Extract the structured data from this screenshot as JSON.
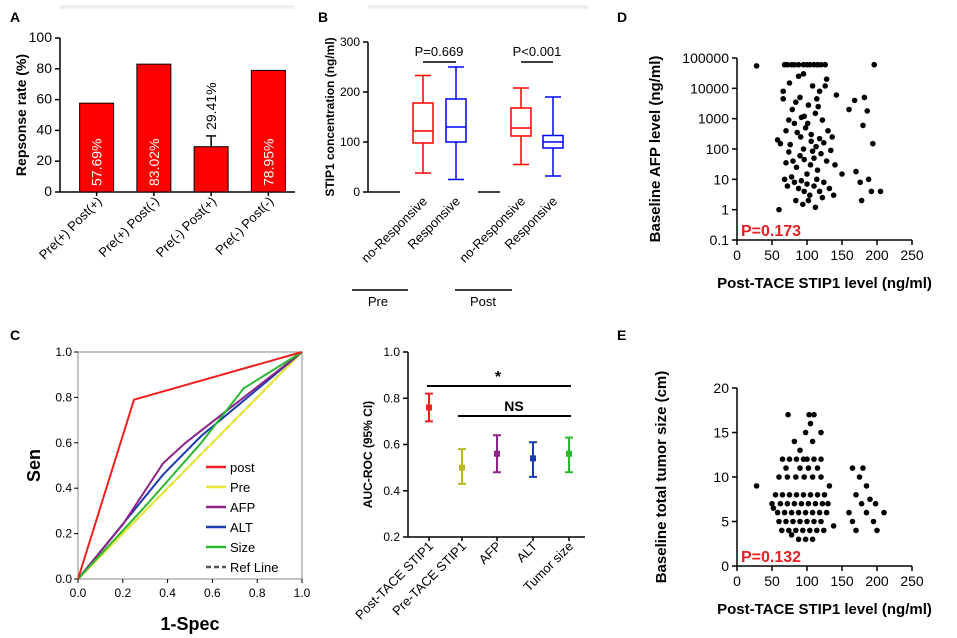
{
  "panels": {
    "A": "A",
    "B": "B",
    "C": "C",
    "D": "D",
    "E": "E"
  },
  "chart_data": [
    {
      "id": "A",
      "type": "bar",
      "ylabel": "Repsonse rate (%)",
      "ylim": [
        0,
        100
      ],
      "yticks": [
        0,
        20,
        40,
        60,
        80,
        100
      ],
      "categories": [
        "Pre(+) Post(+)",
        "Pre(+) Post(-)",
        "Pre(-) Post(+)",
        "Pre(-) Post(-)"
      ],
      "values": [
        57.69,
        83.02,
        29.41,
        78.95
      ],
      "errors": [
        0,
        0,
        7,
        0
      ],
      "labels": [
        "57.69%",
        "83.02%",
        "29.41%",
        "78.95%"
      ],
      "bar_color": "#ff0000"
    },
    {
      "id": "B",
      "type": "box",
      "ylabel": "STIP1 concentration (ng/ml)",
      "ylim": [
        0,
        300
      ],
      "yticks": [
        0,
        100,
        200,
        300
      ],
      "groups": [
        {
          "name": "no-Responsive",
          "set": "Pre",
          "color": "#ff0000",
          "min": 38,
          "q1": 98,
          "median": 122,
          "q3": 178,
          "max": 233
        },
        {
          "name": "Responsive",
          "set": "Pre",
          "color": "#0000ff",
          "min": 25,
          "q1": 100,
          "median": 130,
          "q3": 186,
          "max": 250
        },
        {
          "name": "no-Responsive",
          "set": "Post",
          "color": "#ff0000",
          "min": 55,
          "q1": 112,
          "median": 128,
          "q3": 168,
          "max": 208
        },
        {
          "name": "Responsive",
          "set": "Post",
          "color": "#0000ff",
          "min": 32,
          "q1": 88,
          "median": 100,
          "q3": 113,
          "max": 190
        }
      ],
      "set_labels": [
        "Pre",
        "Post"
      ],
      "annotations": [
        "P=0.669",
        "P<0.001"
      ]
    },
    {
      "id": "C1",
      "type": "line",
      "xlabel": "1-Spec",
      "ylabel": "Sen",
      "xlim": [
        0,
        1
      ],
      "ylim": [
        0,
        1
      ],
      "ticks": [
        "0.0",
        "0.2",
        "0.4",
        "0.6",
        "0.8",
        "1.0"
      ],
      "series": [
        {
          "name": "post",
          "color": "#ee2020",
          "points": [
            [
              0,
              0
            ],
            [
              0.25,
              0.79
            ],
            [
              1,
              1
            ]
          ]
        },
        {
          "name": "Pre",
          "color": "#e8e830",
          "points": [
            [
              0,
              0
            ],
            [
              1,
              1
            ]
          ]
        },
        {
          "name": "AFP",
          "color": "#8e2488",
          "points": [
            [
              0,
              0
            ],
            [
              0.2,
              0.24
            ],
            [
              0.38,
              0.51
            ],
            [
              0.48,
              0.6
            ],
            [
              1,
              1
            ]
          ]
        },
        {
          "name": "ALT",
          "color": "#1a3cb0",
          "points": [
            [
              0,
              0
            ],
            [
              0.38,
              0.46
            ],
            [
              0.55,
              0.63
            ],
            [
              1,
              1
            ]
          ]
        },
        {
          "name": "Size",
          "color": "#2ab830",
          "points": [
            [
              0,
              0
            ],
            [
              0.3,
              0.32
            ],
            [
              0.55,
              0.6
            ],
            [
              0.74,
              0.84
            ],
            [
              1,
              1
            ]
          ]
        },
        {
          "name": "Ref Line",
          "color": "#555555",
          "points": [
            [
              0,
              0
            ],
            [
              1,
              1
            ]
          ]
        }
      ]
    },
    {
      "id": "C2",
      "type": "errorbar",
      "ylabel": "AUC-ROC (95% CI)",
      "ylim": [
        0.2,
        1.0
      ],
      "yticks": [
        "0.2",
        "0.4",
        "0.6",
        "0.8",
        "1.0"
      ],
      "categories": [
        "Post-TACE STIP1",
        "Pre-TACE STIP1",
        "AFP",
        "ALT",
        "Tumor size"
      ],
      "values": [
        0.76,
        0.5,
        0.56,
        0.54,
        0.56
      ],
      "lower": [
        0.7,
        0.43,
        0.48,
        0.46,
        0.48
      ],
      "upper": [
        0.82,
        0.58,
        0.64,
        0.61,
        0.63
      ],
      "colors": [
        "#ee2020",
        "#b8b820",
        "#8e2488",
        "#1a3cb0",
        "#2ab830"
      ],
      "annotations": [
        "*",
        "NS"
      ]
    },
    {
      "id": "D",
      "type": "scatter",
      "xlabel": "Post-TACE STIP1 level (ng/ml)",
      "ylabel": "Baseline AFP level (ng/ml)",
      "xlim": [
        0,
        250
      ],
      "ylim": [
        0.1,
        100000
      ],
      "yscale": "log",
      "xticks": [
        "0",
        "50",
        "100",
        "150",
        "200",
        "250"
      ],
      "yticks": [
        "0.1",
        "1",
        "10",
        "100",
        "1000",
        "10000",
        "100000"
      ],
      "annotation": "P=0.173",
      "points": [
        [
          28,
          55000
        ],
        [
          68,
          60000
        ],
        [
          72,
          60000
        ],
        [
          78,
          60000
        ],
        [
          82,
          60000
        ],
        [
          88,
          60000
        ],
        [
          95,
          60000
        ],
        [
          100,
          60000
        ],
        [
          104,
          60000
        ],
        [
          110,
          60000
        ],
        [
          115,
          60000
        ],
        [
          120,
          60000
        ],
        [
          126,
          60000
        ],
        [
          196,
          60000
        ],
        [
          66,
          8000
        ],
        [
          75,
          15000
        ],
        [
          88,
          25000
        ],
        [
          95,
          30000
        ],
        [
          108,
          12000
        ],
        [
          118,
          8000
        ],
        [
          128,
          20000
        ],
        [
          168,
          4000
        ],
        [
          182,
          5000
        ],
        [
          186,
          1800
        ],
        [
          180,
          600
        ],
        [
          194,
          150
        ],
        [
          188,
          10
        ],
        [
          192,
          4
        ],
        [
          178,
          2
        ],
        [
          58,
          200
        ],
        [
          62,
          150
        ],
        [
          70,
          400
        ],
        [
          74,
          900
        ],
        [
          79,
          2000
        ],
        [
          84,
          3500
        ],
        [
          90,
          5000
        ],
        [
          96,
          1200
        ],
        [
          101,
          700
        ],
        [
          106,
          300
        ],
        [
          112,
          1500
        ],
        [
          116,
          2500
        ],
        [
          122,
          900
        ],
        [
          130,
          400
        ],
        [
          136,
          250
        ],
        [
          142,
          6000
        ],
        [
          160,
          2000
        ],
        [
          74,
          80
        ],
        [
          80,
          40
        ],
        [
          85,
          25
        ],
        [
          90,
          60
        ],
        [
          95,
          100
        ],
        [
          100,
          15
        ],
        [
          105,
          30
        ],
        [
          110,
          50
        ],
        [
          115,
          20
        ],
        [
          120,
          70
        ],
        [
          128,
          40
        ],
        [
          140,
          30
        ],
        [
          150,
          15
        ],
        [
          68,
          10
        ],
        [
          72,
          6
        ],
        [
          78,
          12
        ],
        [
          82,
          8
        ],
        [
          88,
          5
        ],
        [
          92,
          9
        ],
        [
          96,
          4
        ],
        [
          100,
          7
        ],
        [
          104,
          3
        ],
        [
          110,
          6
        ],
        [
          114,
          10
        ],
        [
          118,
          4
        ],
        [
          124,
          8
        ],
        [
          132,
          5
        ],
        [
          138,
          3
        ],
        [
          170,
          18
        ],
        [
          176,
          8
        ],
        [
          205,
          4
        ],
        [
          60,
          1
        ],
        [
          84,
          2
        ],
        [
          94,
          1.5
        ],
        [
          102,
          2
        ],
        [
          112,
          1.2
        ],
        [
          122,
          2.5
        ],
        [
          98,
          500
        ],
        [
          91,
          250
        ],
        [
          106,
          180
        ],
        [
          113,
          120
        ],
        [
          86,
          350
        ],
        [
          76,
          140
        ],
        [
          124,
          160
        ],
        [
          134,
          90
        ],
        [
          70,
          35
        ],
        [
          108,
          85
        ],
        [
          118,
          220
        ],
        [
          96,
          45
        ],
        [
          82,
          700
        ],
        [
          92,
          1100
        ],
        [
          102,
          2800
        ],
        [
          114,
          4500
        ],
        [
          66,
          4500
        ],
        [
          126,
          12000
        ]
      ]
    },
    {
      "id": "E",
      "type": "scatter",
      "xlabel": "Post-TACE STIP1 level (ng/ml)",
      "ylabel": "Baseline total tumor size (cm)",
      "xlim": [
        0,
        250
      ],
      "ylim": [
        0,
        20
      ],
      "xticks": [
        "0",
        "50",
        "100",
        "150",
        "200",
        "250"
      ],
      "yticks": [
        "0",
        "5",
        "10",
        "15",
        "20"
      ],
      "annotation": "P=0.132",
      "points": [
        [
          28,
          9
        ],
        [
          73,
          17
        ],
        [
          103,
          17
        ],
        [
          110,
          17
        ],
        [
          98,
          15
        ],
        [
          105,
          16
        ],
        [
          82,
          14
        ],
        [
          120,
          15
        ],
        [
          90,
          13
        ],
        [
          108,
          14
        ],
        [
          65,
          12
        ],
        [
          75,
          12
        ],
        [
          85,
          12
        ],
        [
          95,
          12
        ],
        [
          100,
          12
        ],
        [
          110,
          12
        ],
        [
          120,
          12
        ],
        [
          70,
          11
        ],
        [
          90,
          11
        ],
        [
          102,
          11
        ],
        [
          115,
          11
        ],
        [
          165,
          11
        ],
        [
          180,
          11
        ],
        [
          60,
          10
        ],
        [
          72,
          10
        ],
        [
          84,
          10
        ],
        [
          96,
          10
        ],
        [
          108,
          10
        ],
        [
          120,
          10
        ],
        [
          175,
          10
        ],
        [
          185,
          9
        ],
        [
          55,
          8
        ],
        [
          65,
          8
        ],
        [
          75,
          8
        ],
        [
          85,
          8
        ],
        [
          95,
          8
        ],
        [
          105,
          8
        ],
        [
          115,
          8
        ],
        [
          125,
          8
        ],
        [
          170,
          8
        ],
        [
          190,
          7.5
        ],
        [
          50,
          7
        ],
        [
          62,
          7
        ],
        [
          72,
          7
        ],
        [
          82,
          7
        ],
        [
          92,
          7
        ],
        [
          102,
          7
        ],
        [
          112,
          7
        ],
        [
          122,
          7
        ],
        [
          130,
          7
        ],
        [
          178,
          7
        ],
        [
          198,
          7
        ],
        [
          58,
          6
        ],
        [
          68,
          6
        ],
        [
          78,
          6
        ],
        [
          88,
          6
        ],
        [
          98,
          6
        ],
        [
          108,
          6
        ],
        [
          118,
          6
        ],
        [
          128,
          6
        ],
        [
          160,
          6
        ],
        [
          185,
          6
        ],
        [
          210,
          6
        ],
        [
          60,
          5
        ],
        [
          70,
          5
        ],
        [
          80,
          5
        ],
        [
          90,
          5
        ],
        [
          100,
          5
        ],
        [
          110,
          5
        ],
        [
          120,
          5
        ],
        [
          165,
          5
        ],
        [
          195,
          5
        ],
        [
          64,
          4
        ],
        [
          74,
          4
        ],
        [
          84,
          4
        ],
        [
          94,
          4
        ],
        [
          104,
          4
        ],
        [
          114,
          4
        ],
        [
          124,
          4
        ],
        [
          170,
          4
        ],
        [
          88,
          3
        ],
        [
          98,
          3
        ],
        [
          108,
          3
        ],
        [
          78,
          3.5
        ],
        [
          52,
          6.5
        ],
        [
          132,
          9
        ],
        [
          138,
          4.5
        ],
        [
          200,
          4
        ]
      ]
    }
  ]
}
